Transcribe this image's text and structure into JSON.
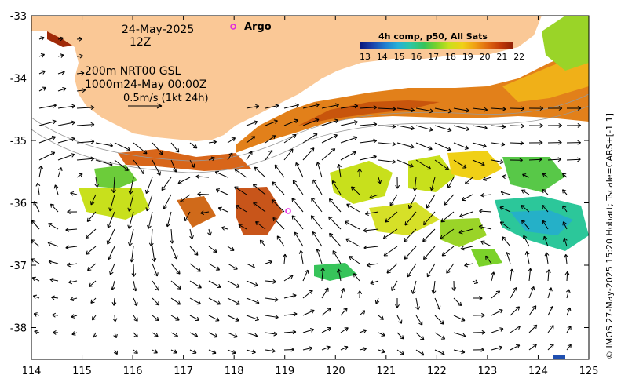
{
  "map": {
    "date": "24-May-2025",
    "hour": "12Z",
    "argo_label": "Argo",
    "depth_line1": "200m  NRT00 GSL",
    "depth_line2": "1000m24-May 00:00Z",
    "scale_label": "0.5m/s (1kt 24h)",
    "credit": "© IMOS 27-May-2025 15:20 Hobart; Tscale=CARS+[-1 1]",
    "colorbar": {
      "title": "4h comp, p50, All Sats",
      "ticks": [
        "13",
        "14",
        "15",
        "16",
        "17",
        "18",
        "19",
        "20",
        "21",
        "22"
      ],
      "colors": [
        "#08157a",
        "#1c3fa8",
        "#1f7fd0",
        "#25b0d8",
        "#2cc7a4",
        "#37c45a",
        "#7bd22a",
        "#c8e01c",
        "#f0d016",
        "#f0a014",
        "#e06a10",
        "#c03808",
        "#902005"
      ]
    },
    "x_ticks": [
      "114",
      "115",
      "116",
      "117",
      "118",
      "119",
      "120",
      "121",
      "122",
      "123",
      "124",
      "125"
    ],
    "y_ticks": [
      "-33",
      "-34",
      "-35",
      "-36",
      "-37",
      "-38"
    ],
    "land_color": "#fac896",
    "argo_color": "#e020e0"
  }
}
